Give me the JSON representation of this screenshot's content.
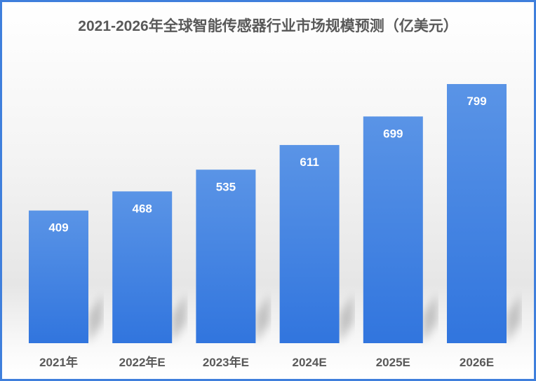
{
  "chart_data": {
    "type": "bar",
    "title": "2021-2026年全球智能传感器行业市场规模预测（亿美元）",
    "categories": [
      "2021年",
      "2022年E",
      "2023年E",
      "2024E",
      "2025E",
      "2026E"
    ],
    "values": [
      409,
      468,
      535,
      611,
      699,
      799
    ],
    "data_labels": [
      "409",
      "468",
      "535",
      "611",
      "699",
      "799"
    ],
    "xlabel": "",
    "ylabel": "",
    "ylim": [
      0,
      799
    ],
    "grid": false,
    "legend": "none",
    "colors": {
      "bar_top": "#5a94e6",
      "bar_bottom": "#3175de",
      "label": "#595959",
      "data_label": "#ffffff",
      "border": "#3f7fdc"
    }
  }
}
